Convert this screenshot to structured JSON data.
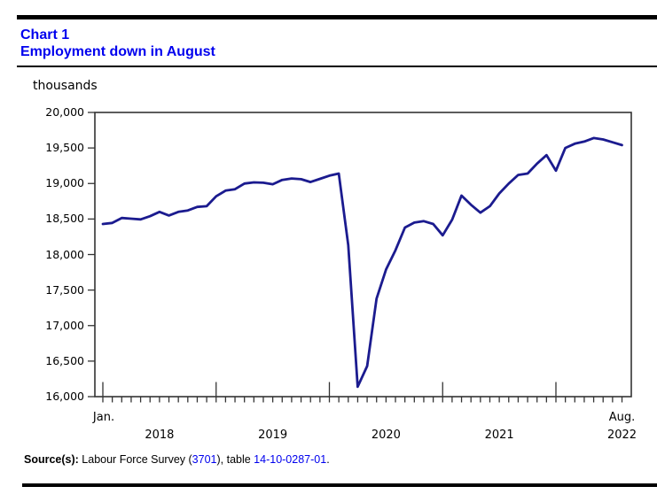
{
  "header": {
    "chart_label": "Chart 1",
    "title": "Employment down in August"
  },
  "colors": {
    "title_blue": "#0000ee",
    "link_blue": "#0000ee",
    "line_navy": "#1b1b8f",
    "axis_gray": "#333333"
  },
  "chart_data": {
    "type": "line",
    "title": "Employment down in August",
    "unit_label": "thousands",
    "grid": false,
    "legend": "none",
    "ylim": [
      16000,
      20000
    ],
    "y_tick_step": 500,
    "y_tick_labels": [
      "20,000",
      "19,500",
      "19,000",
      "18,500",
      "18,000",
      "17,500",
      "17,000",
      "16,500",
      "16,000"
    ],
    "x_first_month_label": "Jan.",
    "x_last_month_label": "Aug.",
    "year_labels": [
      "2018",
      "2019",
      "2020",
      "2021",
      "2022"
    ],
    "months": [
      "2018-01",
      "2018-02",
      "2018-03",
      "2018-04",
      "2018-05",
      "2018-06",
      "2018-07",
      "2018-08",
      "2018-09",
      "2018-10",
      "2018-11",
      "2018-12",
      "2019-01",
      "2019-02",
      "2019-03",
      "2019-04",
      "2019-05",
      "2019-06",
      "2019-07",
      "2019-08",
      "2019-09",
      "2019-10",
      "2019-11",
      "2019-12",
      "2020-01",
      "2020-02",
      "2020-03",
      "2020-04",
      "2020-05",
      "2020-06",
      "2020-07",
      "2020-08",
      "2020-09",
      "2020-10",
      "2020-11",
      "2020-12",
      "2021-01",
      "2021-02",
      "2021-03",
      "2021-04",
      "2021-05",
      "2021-06",
      "2021-07",
      "2021-08",
      "2021-09",
      "2021-10",
      "2021-11",
      "2021-12",
      "2022-01",
      "2022-02",
      "2022-03",
      "2022-04",
      "2022-05",
      "2022-06",
      "2022-07",
      "2022-08"
    ],
    "series": [
      {
        "name": "Employment, thousands",
        "color": "#1b1b8f",
        "values": [
          18430,
          18445,
          18515,
          18505,
          18495,
          18540,
          18600,
          18550,
          18600,
          18620,
          18670,
          18680,
          18820,
          18900,
          18920,
          19000,
          19015,
          19010,
          18990,
          19050,
          19070,
          19060,
          19020,
          19065,
          19110,
          19140,
          18130,
          16140,
          16430,
          17380,
          17790,
          18060,
          18380,
          18450,
          18470,
          18430,
          18270,
          18490,
          18830,
          18700,
          18590,
          18680,
          18860,
          19000,
          19120,
          19140,
          19280,
          19400,
          19180,
          19500,
          19560,
          19590,
          19640,
          19620,
          19580,
          19540
        ]
      }
    ]
  },
  "source": {
    "prefix": "Source(s):",
    "text_1": " Labour Force Survey (",
    "link_1": "3701",
    "text_2": "), table ",
    "link_2": "14-10-0287-01",
    "text_3": "."
  }
}
